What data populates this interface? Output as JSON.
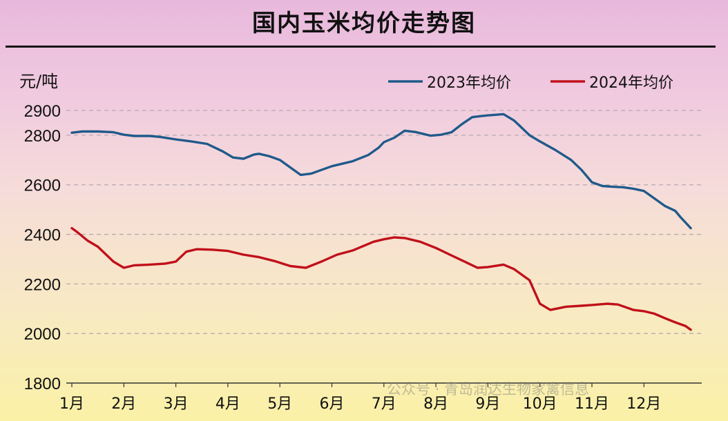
{
  "chart_data": {
    "type": "line",
    "title": "国内玉米均价走势图",
    "ylabel": "元/吨",
    "ylim": [
      1800,
      2900
    ],
    "yticks": [
      1800,
      2000,
      2200,
      2400,
      2600,
      2800,
      2900
    ],
    "categories": [
      "1月",
      "2月",
      "3月",
      "4月",
      "5月",
      "6月",
      "7月",
      "8月",
      "9月",
      "10月",
      "11月",
      "12月"
    ],
    "legend_position": "top-right",
    "grid": "horizontal dashed",
    "series": [
      {
        "name": "2023年均价",
        "color": "#1f5a8a",
        "x": [
          1,
          1.2,
          1.5,
          1.8,
          2.0,
          2.2,
          2.5,
          2.7,
          3.0,
          3.3,
          3.6,
          3.9,
          4.1,
          4.3,
          4.5,
          4.6,
          4.8,
          5.0,
          5.2,
          5.4,
          5.6,
          5.8,
          6.0,
          6.2,
          6.4,
          6.7,
          6.9,
          7.0,
          7.2,
          7.4,
          7.6,
          7.9,
          8.1,
          8.3,
          8.5,
          8.7,
          8.9,
          9.0,
          9.3,
          9.5,
          9.6,
          9.8,
          10.0,
          10.3,
          10.6,
          10.8,
          11.0,
          11.2,
          11.4,
          11.6,
          11.8,
          12.0,
          12.2,
          12.4,
          12.6,
          12.7,
          12.9
        ],
        "values": [
          2810,
          2815,
          2815,
          2812,
          2802,
          2797,
          2797,
          2793,
          2783,
          2775,
          2765,
          2735,
          2710,
          2705,
          2722,
          2725,
          2715,
          2700,
          2670,
          2640,
          2645,
          2660,
          2675,
          2685,
          2695,
          2720,
          2750,
          2772,
          2790,
          2818,
          2813,
          2798,
          2802,
          2812,
          2845,
          2873,
          2878,
          2880,
          2885,
          2860,
          2840,
          2800,
          2775,
          2740,
          2700,
          2660,
          2610,
          2595,
          2592,
          2590,
          2584,
          2575,
          2545,
          2515,
          2495,
          2470,
          2425
        ]
      },
      {
        "name": "2024年均价",
        "color": "#c0101a",
        "x": [
          1,
          1.1,
          1.3,
          1.5,
          1.8,
          2.0,
          2.2,
          2.5,
          2.8,
          3.0,
          3.2,
          3.4,
          3.7,
          4.0,
          4.3,
          4.6,
          4.9,
          5.2,
          5.5,
          5.8,
          6.1,
          6.4,
          6.8,
          7.0,
          7.2,
          7.4,
          7.7,
          8.0,
          8.3,
          8.6,
          8.8,
          9.0,
          9.3,
          9.5,
          9.8,
          10.0,
          10.2,
          10.5,
          10.8,
          11.0,
          11.3,
          11.5,
          11.8,
          12.0,
          12.2,
          12.4,
          12.6,
          12.8,
          12.9
        ],
        "values": [
          2425,
          2410,
          2375,
          2350,
          2290,
          2265,
          2275,
          2278,
          2282,
          2290,
          2330,
          2340,
          2338,
          2333,
          2318,
          2308,
          2292,
          2272,
          2265,
          2290,
          2318,
          2335,
          2370,
          2380,
          2388,
          2385,
          2370,
          2345,
          2315,
          2285,
          2265,
          2268,
          2278,
          2260,
          2215,
          2120,
          2095,
          2108,
          2112,
          2115,
          2120,
          2117,
          2095,
          2090,
          2080,
          2062,
          2045,
          2030,
          2015
        ]
      }
    ]
  },
  "watermark": "公众号 · 青岛润达生物家禽信息"
}
